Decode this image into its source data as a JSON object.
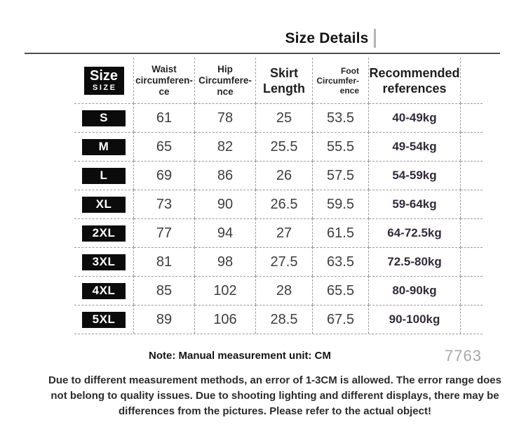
{
  "title": {
    "text": "Size Details"
  },
  "table": {
    "header": {
      "size_badge": {
        "primary": "Size",
        "secondary": "SIZE"
      },
      "waist": "Waist\ncircumferen-\nce",
      "hip": "Hip\nCircumfere-\nnce",
      "skirt": "Skirt\nLength",
      "foot": "Foot\nCircumfer-\nence",
      "recommended": "Recommended\nreferences"
    },
    "rows": [
      {
        "size": "S",
        "waist": "61",
        "hip": "78",
        "skirt": "25",
        "foot": "53.5",
        "recommended": "40-49kg"
      },
      {
        "size": "M",
        "waist": "65",
        "hip": "82",
        "skirt": "25.5",
        "foot": "55.5",
        "recommended": "49-54kg"
      },
      {
        "size": "L",
        "waist": "69",
        "hip": "86",
        "skirt": "26",
        "foot": "57.5",
        "recommended": "54-59kg"
      },
      {
        "size": "XL",
        "waist": "73",
        "hip": "90",
        "skirt": "26.5",
        "foot": "59.5",
        "recommended": "59-64kg"
      },
      {
        "size": "2XL",
        "waist": "77",
        "hip": "94",
        "skirt": "27",
        "foot": "61.5",
        "recommended": "64-72.5kg"
      },
      {
        "size": "3XL",
        "waist": "81",
        "hip": "98",
        "skirt": "27.5",
        "foot": "63.5",
        "recommended": "72.5-80kg"
      },
      {
        "size": "4XL",
        "waist": "85",
        "hip": "102",
        "skirt": "28",
        "foot": "65.5",
        "recommended": "80-90kg"
      },
      {
        "size": "5XL",
        "waist": "89",
        "hip": "106",
        "skirt": "28.5",
        "foot": "67.5",
        "recommended": "90-100kg"
      }
    ]
  },
  "note": {
    "text": "Note: Manual measurement unit: CM",
    "code": "7763"
  },
  "footer": {
    "lines": [
      "Due to different measurement methods, an error of 1-3CM is allowed. The error range does",
      "not belong to quality issues. Due to shooting lighting and different displays, there may be",
      "differences from the pictures. Please refer to the actual object!"
    ]
  },
  "colors": {
    "badge_bg": "#0b0b0b",
    "badge_text": "#ffffff",
    "number_text": "#3e3e3e",
    "kg_text": "#322b3a",
    "dashed_line": "#9a9a9a",
    "divider_line": "#4f4f4f",
    "code_text": "#a8a8a8"
  }
}
